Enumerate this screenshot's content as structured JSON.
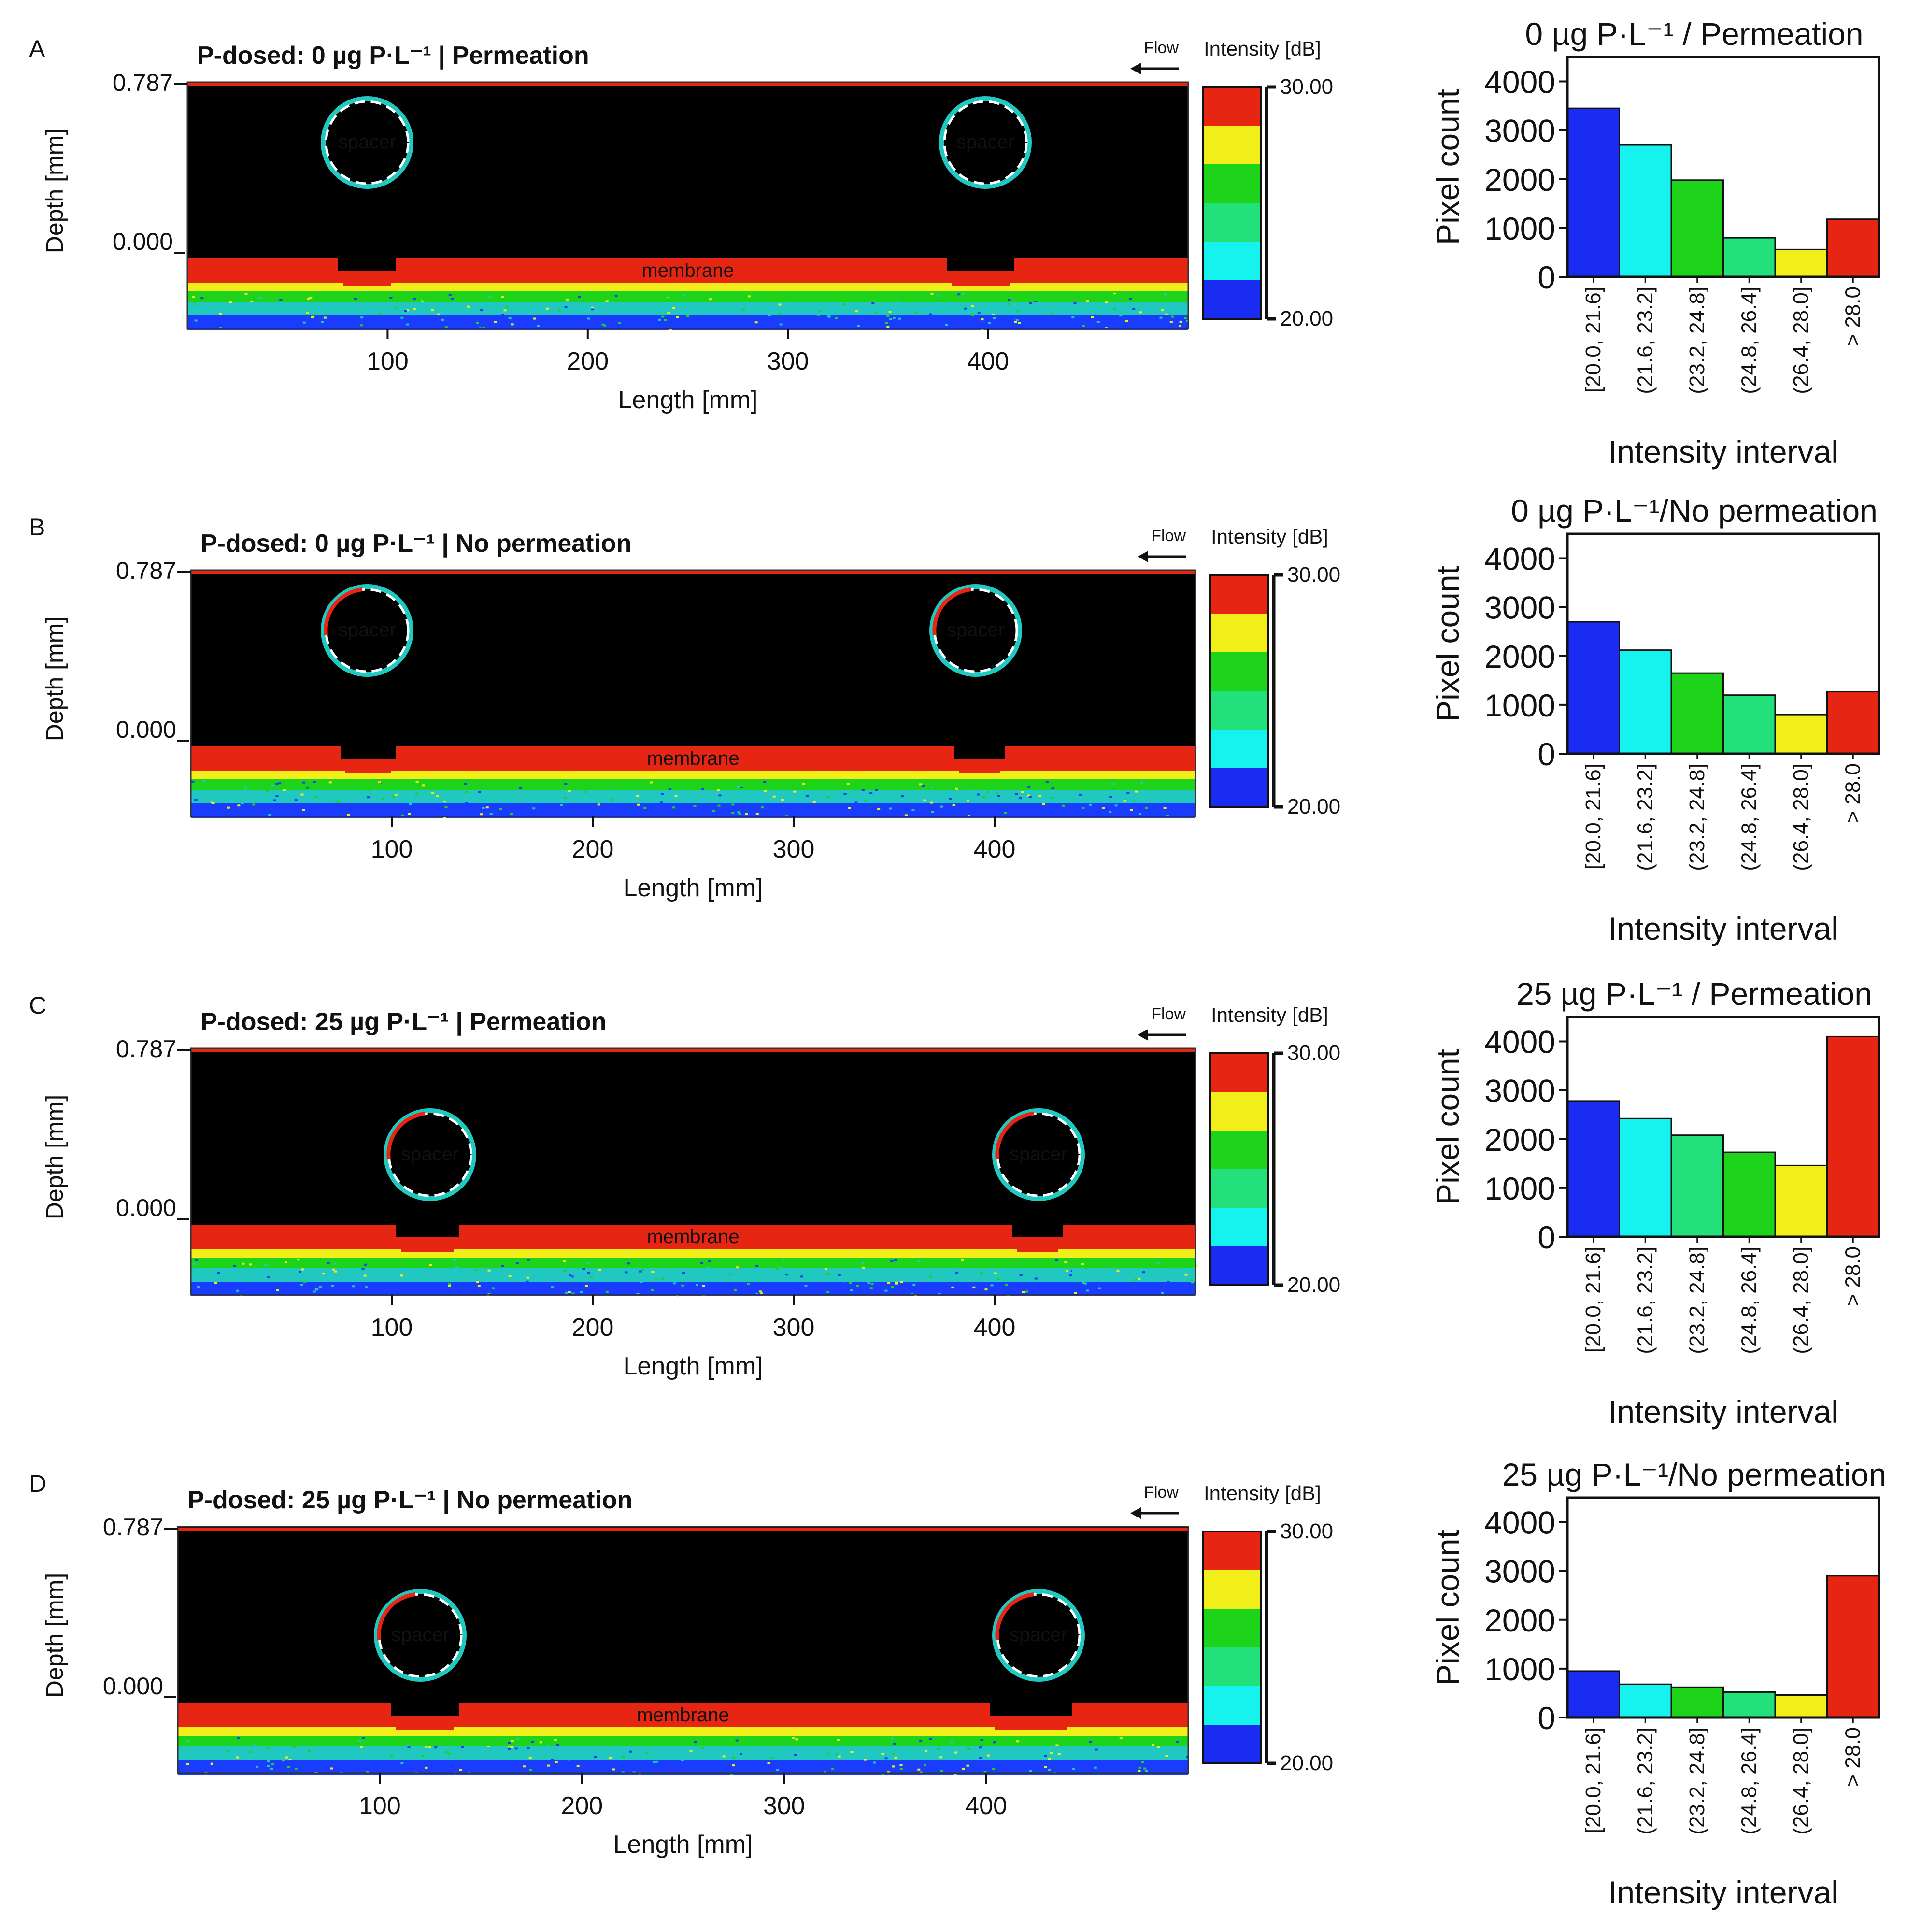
{
  "figure": {
    "colors": {
      "black": "#000000",
      "white": "#ffffff",
      "red": "#e62512",
      "yellow": "#f2ee1a",
      "green": "#1ed41a",
      "light_green": "#22e07a",
      "cyan": "#16f2ee",
      "blue": "#1a2cf2",
      "scan_blue": "#1a3cff",
      "scan_teal": "#20c8c0"
    },
    "scan_common": {
      "flow_label": "Flow",
      "colorbar_title": "Intensity [dB]",
      "colorbar_max": "30.00",
      "colorbar_min": "20.00",
      "colorbar_colors": [
        "#e62512",
        "#f2ee1a",
        "#1ed41a",
        "#22e07a",
        "#16f2ee",
        "#1a2cf2"
      ],
      "depth_label": "Depth [mm]",
      "length_label": "Length [mm]",
      "depth_ticks": [
        "0.787",
        "0.000"
      ],
      "length_ticks": [
        "100",
        "200",
        "300",
        "400"
      ],
      "spacer_label": "spacer",
      "membrane_label": "membrane"
    },
    "panels": [
      {
        "letter": "A",
        "title": "P-dosed: 0 µg P·L⁻¹ | Permeation"
      },
      {
        "letter": "B",
        "title": "P-dosed: 0 µg P·L⁻¹ | No permeation"
      },
      {
        "letter": "C",
        "title": "P-dosed: 25 µg P·L⁻¹ | Permeation"
      },
      {
        "letter": "D",
        "title": "P-dosed: 25 µg P·L⁻¹ | No permeation"
      }
    ]
  },
  "chart_data": [
    {
      "type": "bar",
      "title": "0 µg P·L⁻¹ / Permeation",
      "xlabel": "Intensity interval",
      "ylabel": "Pixel count",
      "categories": [
        "[20.0, 21.6]",
        "(21.6, 23.2]",
        "(23.2, 24.8]",
        "(24.8, 26.4]",
        "(26.4, 28.0]",
        "> 28.0"
      ],
      "values": [
        3450,
        2700,
        1980,
        800,
        560,
        1180
      ],
      "bar_colors": [
        "#1a2cf2",
        "#16f2ee",
        "#1ed41a",
        "#22e07a",
        "#f2ee1a",
        "#e62512"
      ],
      "yticks": [
        0,
        1000,
        2000,
        3000,
        4000
      ],
      "ylim": [
        0,
        4500
      ]
    },
    {
      "type": "bar",
      "title": "0 µg P·L⁻¹/No permeation",
      "xlabel": "Intensity interval",
      "ylabel": "Pixel count",
      "categories": [
        "[20.0, 21.6]",
        "(21.6, 23.2]",
        "(23.2, 24.8]",
        "(24.8, 26.4]",
        "(26.4, 28.0]",
        "> 28.0"
      ],
      "values": [
        2700,
        2120,
        1650,
        1200,
        800,
        1270
      ],
      "bar_colors": [
        "#1a2cf2",
        "#16f2ee",
        "#1ed41a",
        "#22e07a",
        "#f2ee1a",
        "#e62512"
      ],
      "yticks": [
        0,
        1000,
        2000,
        3000,
        4000
      ],
      "ylim": [
        0,
        4500
      ]
    },
    {
      "type": "bar",
      "title": "25 µg P·L⁻¹ / Permeation",
      "xlabel": "Intensity interval",
      "ylabel": "Pixel count",
      "categories": [
        "[20.0, 21.6]",
        "(21.6, 23.2]",
        "(23.2, 24.8]",
        "(24.8, 26.4]",
        "(26.4, 28.0]",
        "> 28.0"
      ],
      "values": [
        2780,
        2420,
        2080,
        1730,
        1460,
        4100
      ],
      "bar_colors": [
        "#1a2cf2",
        "#16f2ee",
        "#22e07a",
        "#1ed41a",
        "#f2ee1a",
        "#e62512"
      ],
      "yticks": [
        0,
        1000,
        2000,
        3000,
        4000
      ],
      "ylim": [
        0,
        4500
      ]
    },
    {
      "type": "bar",
      "title": "25 µg P·L⁻¹/No permeation",
      "xlabel": "Intensity interval",
      "ylabel": "Pixel count",
      "categories": [
        "[20.0, 21.6]",
        "(21.6, 23.2]",
        "(23.2, 24.8]",
        "(24.8, 26.4]",
        "(26.4, 28.0]",
        "> 28.0"
      ],
      "values": [
        950,
        680,
        620,
        520,
        460,
        2900
      ],
      "bar_colors": [
        "#1a2cf2",
        "#16f2ee",
        "#1ed41a",
        "#22e07a",
        "#f2ee1a",
        "#e62512"
      ],
      "yticks": [
        0,
        1000,
        2000,
        3000,
        4000
      ],
      "ylim": [
        0,
        4500
      ]
    }
  ]
}
